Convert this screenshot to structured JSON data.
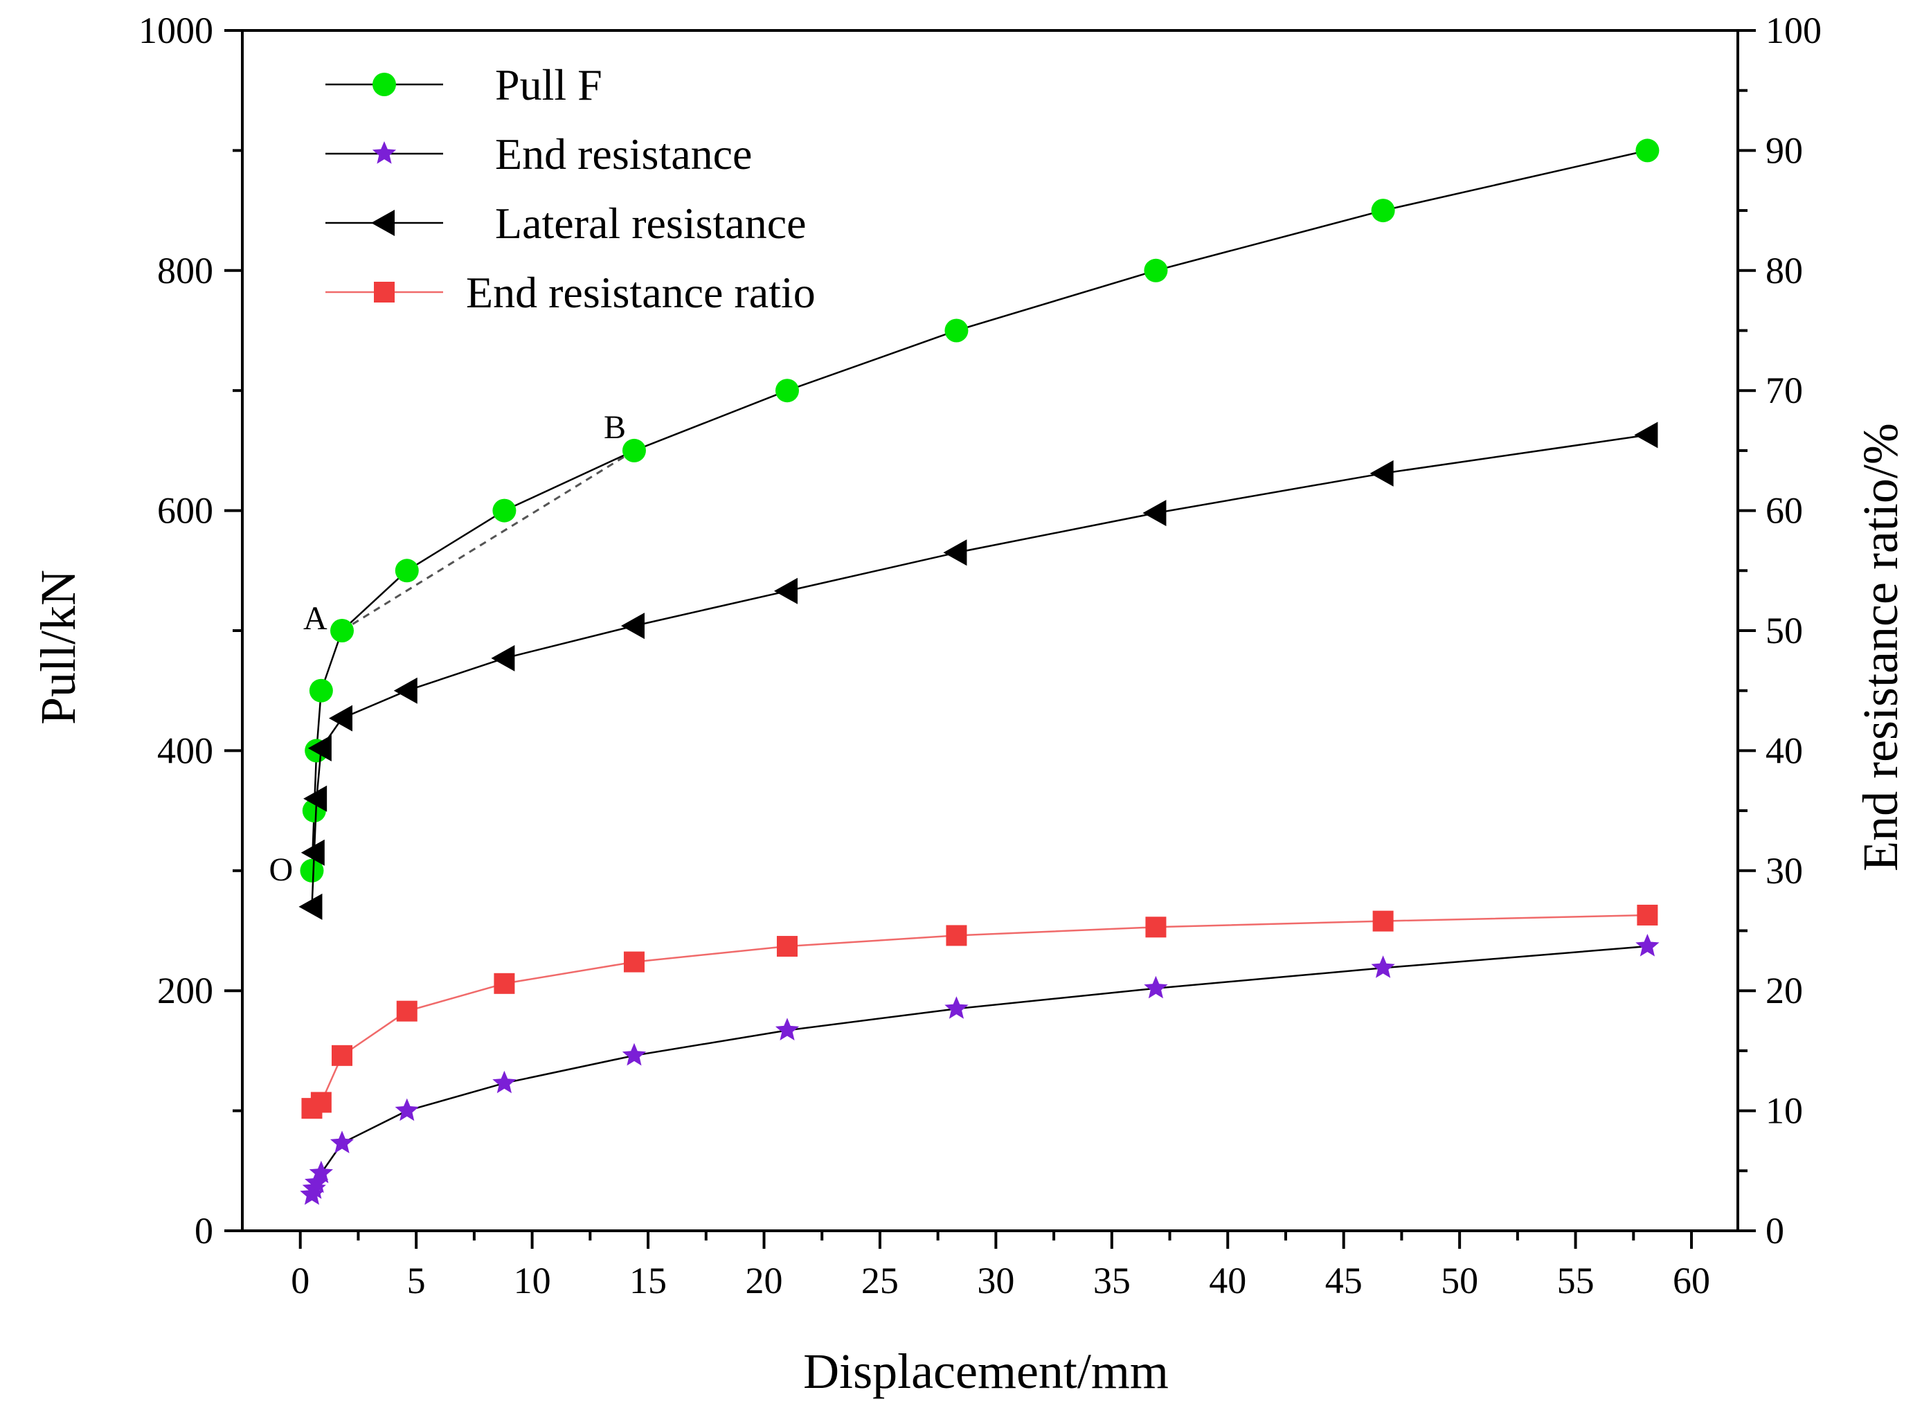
{
  "chart_data": {
    "type": "line",
    "xlabel": "Displacement/mm",
    "ylabel": "Pull/kN",
    "y2label": "End resistance ratio/%",
    "xlim": [
      -2.5,
      62
    ],
    "ylim": [
      0,
      1000
    ],
    "y2lim": [
      0,
      100
    ],
    "xticks": [
      0,
      5,
      10,
      15,
      20,
      25,
      30,
      35,
      40,
      45,
      50,
      55,
      60
    ],
    "yticks": [
      0,
      200,
      400,
      600,
      800,
      1000
    ],
    "y2ticks": [
      0,
      10,
      20,
      30,
      40,
      50,
      60,
      70,
      80,
      90,
      100
    ],
    "legend_position": "top-left",
    "series": [
      {
        "name": "Pull F",
        "axis": "left",
        "marker": "circle",
        "color": "#00e600",
        "line_color": "#000000",
        "points": [
          [
            0.5,
            300
          ],
          [
            0.6,
            350
          ],
          [
            0.7,
            400
          ],
          [
            0.9,
            450
          ],
          [
            1.8,
            500
          ],
          [
            4.6,
            550
          ],
          [
            8.8,
            600
          ],
          [
            14.4,
            650
          ],
          [
            21,
            700
          ],
          [
            28.3,
            750
          ],
          [
            36.9,
            800
          ],
          [
            46.7,
            850
          ],
          [
            58.1,
            900
          ]
        ]
      },
      {
        "name": "End resistance",
        "axis": "left",
        "marker": "star",
        "color": "#7b1fd6",
        "line_color": "#000000",
        "points": [
          [
            0.5,
            30
          ],
          [
            0.6,
            35
          ],
          [
            0.7,
            40
          ],
          [
            0.9,
            48
          ],
          [
            1.8,
            73
          ],
          [
            4.6,
            100
          ],
          [
            8.8,
            123
          ],
          [
            14.4,
            146
          ],
          [
            21,
            167
          ],
          [
            28.3,
            185
          ],
          [
            36.9,
            202
          ],
          [
            46.7,
            219
          ],
          [
            58.1,
            237
          ]
        ]
      },
      {
        "name": "Lateral resistance",
        "axis": "left",
        "marker": "triangle-left",
        "color": "#000000",
        "line_color": "#000000",
        "points": [
          [
            0.5,
            270
          ],
          [
            0.6,
            315
          ],
          [
            0.7,
            360
          ],
          [
            0.9,
            402
          ],
          [
            1.8,
            427
          ],
          [
            4.6,
            450
          ],
          [
            8.8,
            477
          ],
          [
            14.4,
            504
          ],
          [
            21,
            533
          ],
          [
            28.3,
            565
          ],
          [
            36.9,
            598
          ],
          [
            46.7,
            631
          ],
          [
            58.1,
            663
          ]
        ]
      },
      {
        "name": "End resistance ratio",
        "axis": "right",
        "marker": "square",
        "color": "#f03c3c",
        "line_color": "#f06a6a",
        "points": [
          [
            0.5,
            10.2
          ],
          [
            0.9,
            10.7
          ],
          [
            1.8,
            14.6
          ],
          [
            4.6,
            18.3
          ],
          [
            8.8,
            20.6
          ],
          [
            14.4,
            22.4
          ],
          [
            21,
            23.7
          ],
          [
            28.3,
            24.6
          ],
          [
            36.9,
            25.3
          ],
          [
            46.7,
            25.8
          ],
          [
            58.1,
            26.3
          ]
        ]
      }
    ],
    "annotations": [
      {
        "text": "A",
        "x": 1.8,
        "y": 500
      },
      {
        "text": "B",
        "x": 14.4,
        "y": 650
      },
      {
        "text": "O",
        "x": 0.5,
        "y": 300
      }
    ],
    "dashed_chord": [
      [
        1.8,
        500
      ],
      [
        14.4,
        650
      ]
    ]
  }
}
